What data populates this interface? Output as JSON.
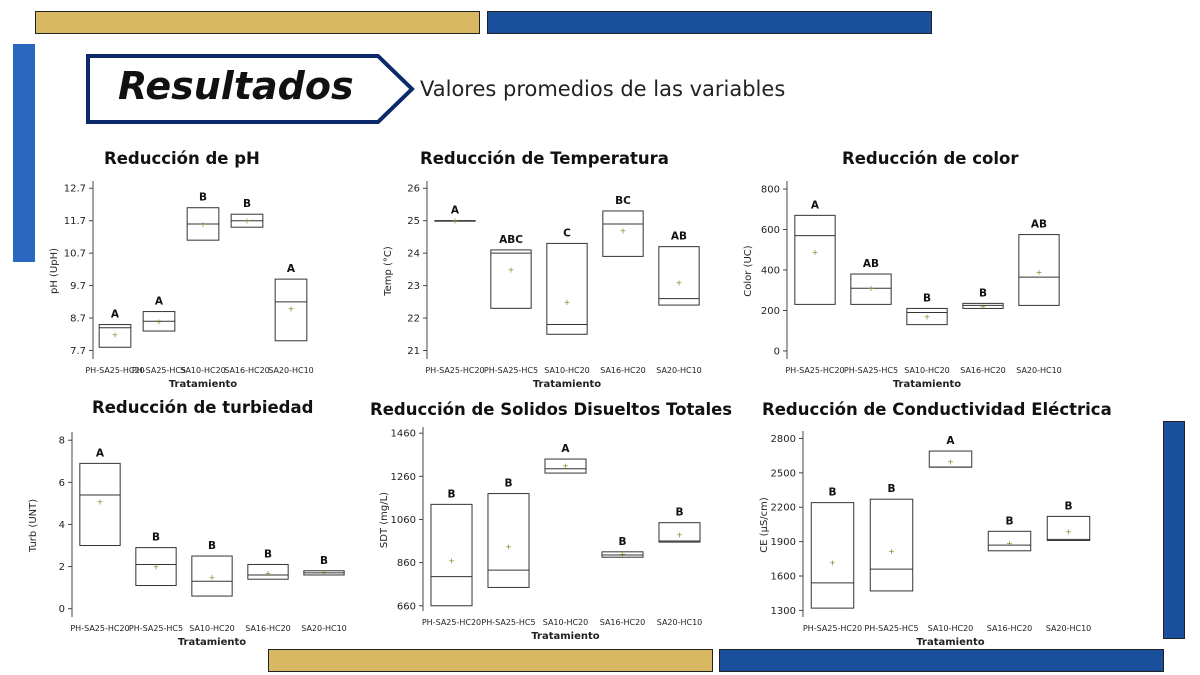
{
  "slide": {
    "title": "Resultados",
    "subtitle": "Valores promedios de las variables",
    "colors": {
      "gold": "#d8b862",
      "navy": "#0c2a6b",
      "blue": "#1a4f9c"
    }
  },
  "chart_data": [
    {
      "type": "box",
      "title": "Reducción de pH",
      "xlabel": "Tratamiento",
      "ylabel": "pH (UpH)",
      "categories": [
        "PH-SA25-HC20",
        "PH-SA25-HC5",
        "SA10-HC20",
        "SA16-HC20",
        "SA20-HC10"
      ],
      "yticks": [
        "7.7",
        "8.7",
        "9.7",
        "10.7",
        "11.7",
        "12.7"
      ],
      "ylim": [
        7.5,
        12.8
      ],
      "boxes": [
        {
          "low": 7.8,
          "median": 8.4,
          "high": 8.5,
          "mean": 8.2,
          "group": "A"
        },
        {
          "low": 8.3,
          "median": 8.6,
          "high": 8.9,
          "mean": 8.6,
          "group": "A"
        },
        {
          "low": 11.1,
          "median": 11.6,
          "high": 12.1,
          "mean": 11.6,
          "group": "B"
        },
        {
          "low": 11.5,
          "median": 11.7,
          "high": 11.9,
          "mean": 11.7,
          "group": "B"
        },
        {
          "low": 8.0,
          "median": 9.2,
          "high": 9.9,
          "mean": 9.0,
          "group": "A"
        }
      ]
    },
    {
      "type": "box",
      "title": "Reducción de Temperatura",
      "xlabel": "Tratamiento",
      "ylabel": "Temp (°C)",
      "categories": [
        "PH-SA25-HC20",
        "PH-SA25-HC5",
        "SA10-HC20",
        "SA16-HC20",
        "SA20-HC10"
      ],
      "yticks": [
        "21",
        "22",
        "23",
        "24",
        "25",
        "26"
      ],
      "ylim": [
        20.8,
        26.1
      ],
      "boxes": [
        {
          "low": 25.0,
          "median": 25.0,
          "high": 25.0,
          "mean": 25.0,
          "group": "A"
        },
        {
          "low": 22.3,
          "median": 24.0,
          "high": 24.1,
          "mean": 23.5,
          "group": "ABC"
        },
        {
          "low": 21.5,
          "median": 21.8,
          "high": 24.3,
          "mean": 22.5,
          "group": "C"
        },
        {
          "low": 23.9,
          "median": 24.9,
          "high": 25.3,
          "mean": 24.7,
          "group": "BC"
        },
        {
          "low": 22.4,
          "median": 22.6,
          "high": 24.2,
          "mean": 23.1,
          "group": "AB"
        }
      ]
    },
    {
      "type": "box",
      "title": "Reducción de color",
      "xlabel": "Tratamiento",
      "ylabel": "Color (UC)",
      "categories": [
        "PH-SA25-HC20",
        "PH-SA25-HC5",
        "SA10-HC20",
        "SA16-HC20",
        "SA20-HC10"
      ],
      "yticks": [
        "0",
        "200",
        "400",
        "600",
        "800"
      ],
      "ylim": [
        -30,
        820
      ],
      "boxes": [
        {
          "low": 230,
          "median": 570,
          "high": 670,
          "mean": 490,
          "group": "A"
        },
        {
          "low": 230,
          "median": 310,
          "high": 380,
          "mean": 310,
          "group": "AB"
        },
        {
          "low": 130,
          "median": 190,
          "high": 210,
          "mean": 170,
          "group": "B"
        },
        {
          "low": 210,
          "median": 225,
          "high": 235,
          "mean": 220,
          "group": "B"
        },
        {
          "low": 225,
          "median": 365,
          "high": 575,
          "mean": 390,
          "group": "AB"
        }
      ]
    },
    {
      "type": "box",
      "title": "Reducción de turbiedad",
      "xlabel": "Tratamiento",
      "ylabel": "Turb (UNT)",
      "categories": [
        "PH-SA25-HC20",
        "PH-SA25-HC5",
        "SA10-HC20",
        "SA16-HC20",
        "SA20-HC10"
      ],
      "yticks": [
        "0",
        "2",
        "4",
        "6",
        "8"
      ],
      "ylim": [
        -0.3,
        8.2
      ],
      "boxes": [
        {
          "low": 3.0,
          "median": 5.4,
          "high": 6.9,
          "mean": 5.1,
          "group": "A"
        },
        {
          "low": 1.1,
          "median": 2.1,
          "high": 2.9,
          "mean": 2.0,
          "group": "B"
        },
        {
          "low": 0.6,
          "median": 1.3,
          "high": 2.5,
          "mean": 1.5,
          "group": "B"
        },
        {
          "low": 1.4,
          "median": 1.6,
          "high": 2.1,
          "mean": 1.7,
          "group": "B"
        },
        {
          "low": 1.6,
          "median": 1.7,
          "high": 1.8,
          "mean": 1.75,
          "group": "B"
        }
      ]
    },
    {
      "type": "box",
      "title": "Reducción de Solidos Disueltos Totales",
      "xlabel": "Tratamiento",
      "ylabel": "SDT (mg/L)",
      "categories": [
        "PH-SA25-HC20",
        "PH-SA25-HC5",
        "SA10-HC20",
        "SA16-HC20",
        "SA20-HC10"
      ],
      "yticks": [
        "660",
        "860",
        "1060",
        "1260",
        "1460"
      ],
      "ylim": [
        645,
        1470
      ],
      "boxes": [
        {
          "low": 660,
          "median": 795,
          "high": 1130,
          "mean": 870,
          "group": "B"
        },
        {
          "low": 745,
          "median": 825,
          "high": 1180,
          "mean": 935,
          "group": "B"
        },
        {
          "low": 1275,
          "median": 1295,
          "high": 1340,
          "mean": 1310,
          "group": "A"
        },
        {
          "low": 885,
          "median": 895,
          "high": 910,
          "mean": 900,
          "group": "B"
        },
        {
          "low": 955,
          "median": 960,
          "high": 1045,
          "mean": 990,
          "group": "B"
        }
      ]
    },
    {
      "type": "box",
      "title": "Reducción de Conductividad Eléctrica",
      "xlabel": "Tratamiento",
      "ylabel": "CE (µS/cm)",
      "categories": [
        "PH-SA25-HC20",
        "PH-SA25-HC5",
        "SA10-HC20",
        "SA16-HC20",
        "SA20-HC10"
      ],
      "yticks": [
        "1300",
        "1600",
        "1900",
        "2200",
        "2500",
        "2800"
      ],
      "ylim": [
        1260,
        2830
      ],
      "boxes": [
        {
          "low": 1320,
          "median": 1540,
          "high": 2240,
          "mean": 1720,
          "group": "B"
        },
        {
          "low": 1470,
          "median": 1660,
          "high": 2270,
          "mean": 1820,
          "group": "B"
        },
        {
          "low": 2550,
          "median": 2550,
          "high": 2690,
          "mean": 2600,
          "group": "A"
        },
        {
          "low": 1820,
          "median": 1870,
          "high": 1990,
          "mean": 1890,
          "group": "B"
        },
        {
          "low": 1910,
          "median": 1920,
          "high": 2120,
          "mean": 1990,
          "group": "B"
        }
      ]
    }
  ]
}
